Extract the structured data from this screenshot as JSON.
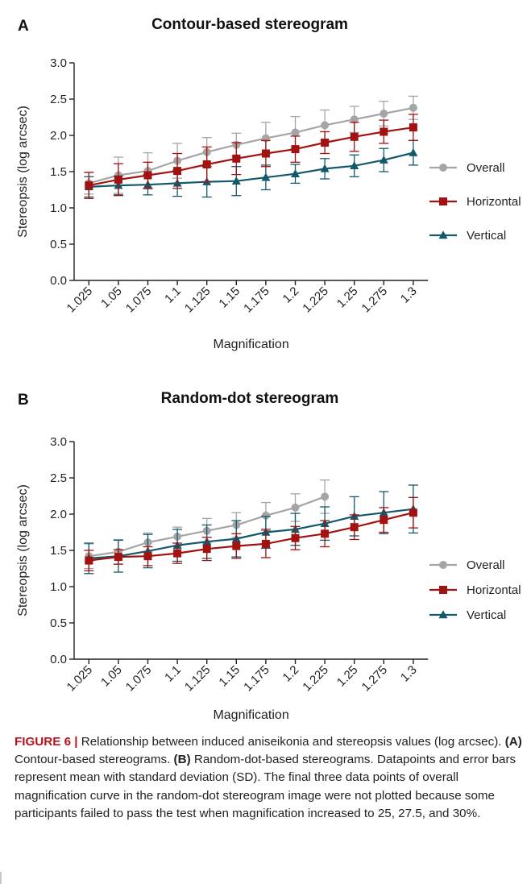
{
  "chart_data": [
    {
      "type": "line",
      "panel_label": "A",
      "title": "Contour-based stereogram",
      "xlabel": "Magnification",
      "ylabel": "Stereopsis (log arcsec)",
      "categories": [
        "1.025",
        "1.05",
        "1.075",
        "1.1",
        "1.125",
        "1.15",
        "1.175",
        "1.2",
        "1.225",
        "1.25",
        "1.275",
        "1.3"
      ],
      "y_ticks": [
        "0.0",
        "0.5",
        "1.0",
        "1.5",
        "2.0",
        "2.5",
        "3.0"
      ],
      "ylim": [
        0,
        3.0
      ],
      "legend_position": "right",
      "error_bars": "SD",
      "series": [
        {
          "name": "Overall",
          "marker": "circle",
          "color": "#a5a5a5",
          "values": [
            1.34,
            1.45,
            1.51,
            1.65,
            1.77,
            1.87,
            1.96,
            2.04,
            2.14,
            2.22,
            2.3,
            2.38
          ],
          "sd": [
            0.15,
            0.25,
            0.25,
            0.24,
            0.2,
            0.16,
            0.22,
            0.22,
            0.21,
            0.18,
            0.17,
            0.16
          ]
        },
        {
          "name": "Horizontal",
          "marker": "square",
          "color": "#a11210",
          "values": [
            1.31,
            1.39,
            1.45,
            1.51,
            1.6,
            1.68,
            1.75,
            1.81,
            1.9,
            1.98,
            2.05,
            2.11
          ],
          "sd": [
            0.18,
            0.22,
            0.18,
            0.24,
            0.24,
            0.22,
            0.18,
            0.18,
            0.15,
            0.2,
            0.16,
            0.18
          ]
        },
        {
          "name": "Vertical",
          "marker": "triangle",
          "color": "#14596b",
          "values": [
            1.29,
            1.31,
            1.32,
            1.34,
            1.36,
            1.37,
            1.42,
            1.47,
            1.54,
            1.58,
            1.66,
            1.76
          ],
          "sd": [
            0.14,
            0.13,
            0.14,
            0.18,
            0.21,
            0.2,
            0.17,
            0.13,
            0.14,
            0.15,
            0.16,
            0.17
          ]
        }
      ]
    },
    {
      "type": "line",
      "panel_label": "B",
      "title": "Random-dot stereogram",
      "xlabel": "Magnification",
      "ylabel": "Stereopsis (log arcsec)",
      "categories": [
        "1.025",
        "1.05",
        "1.075",
        "1.1",
        "1.125",
        "1.15",
        "1.175",
        "1.2",
        "1.225",
        "1.25",
        "1.275",
        "1.3"
      ],
      "y_ticks": [
        "0.0",
        "0.5",
        "1.0",
        "1.5",
        "2.0",
        "2.5",
        "3.0"
      ],
      "ylim": [
        0,
        3.0
      ],
      "legend_position": "right",
      "error_bars": "SD",
      "series": [
        {
          "name": "Overall",
          "marker": "circle",
          "color": "#a5a5a5",
          "values": [
            1.42,
            1.48,
            1.61,
            1.69,
            1.77,
            1.85,
            1.98,
            2.09,
            2.24,
            null,
            null,
            null
          ],
          "sd": [
            0.17,
            0.17,
            0.13,
            0.13,
            0.17,
            0.17,
            0.18,
            0.19,
            0.23,
            null,
            null,
            null
          ]
        },
        {
          "name": "Horizontal",
          "marker": "square",
          "color": "#a11210",
          "values": [
            1.36,
            1.41,
            1.42,
            1.46,
            1.52,
            1.56,
            1.59,
            1.67,
            1.73,
            1.82,
            1.92,
            2.02
          ],
          "sd": [
            0.14,
            0.1,
            0.13,
            0.14,
            0.16,
            0.17,
            0.19,
            0.16,
            0.18,
            0.17,
            0.17,
            0.21
          ]
        },
        {
          "name": "Vertical",
          "marker": "triangle",
          "color": "#14596b",
          "values": [
            1.39,
            1.42,
            1.49,
            1.57,
            1.62,
            1.66,
            1.75,
            1.79,
            1.87,
            1.97,
            2.02,
            2.07
          ],
          "sd": [
            0.21,
            0.22,
            0.23,
            0.22,
            0.23,
            0.25,
            0.22,
            0.22,
            0.23,
            0.27,
            0.29,
            0.33
          ]
        }
      ]
    }
  ],
  "caption": {
    "figure_label": "FIGURE 6 |",
    "text_1": " Relationship between induced aniseikonia and stereopsis values (log arcsec). ",
    "ref_a": "(A)",
    "text_2": " Contour-based stereograms. ",
    "ref_b": "(B)",
    "text_3": " Random-dot-based stereograms. Datapoints and error bars represent mean with standard deviation (SD). The final three data points of overall magnification curve in the random-dot stereogram image were not plotted because some participants failed to pass the test when magnification increased to 25, 27.5, and 30%."
  }
}
